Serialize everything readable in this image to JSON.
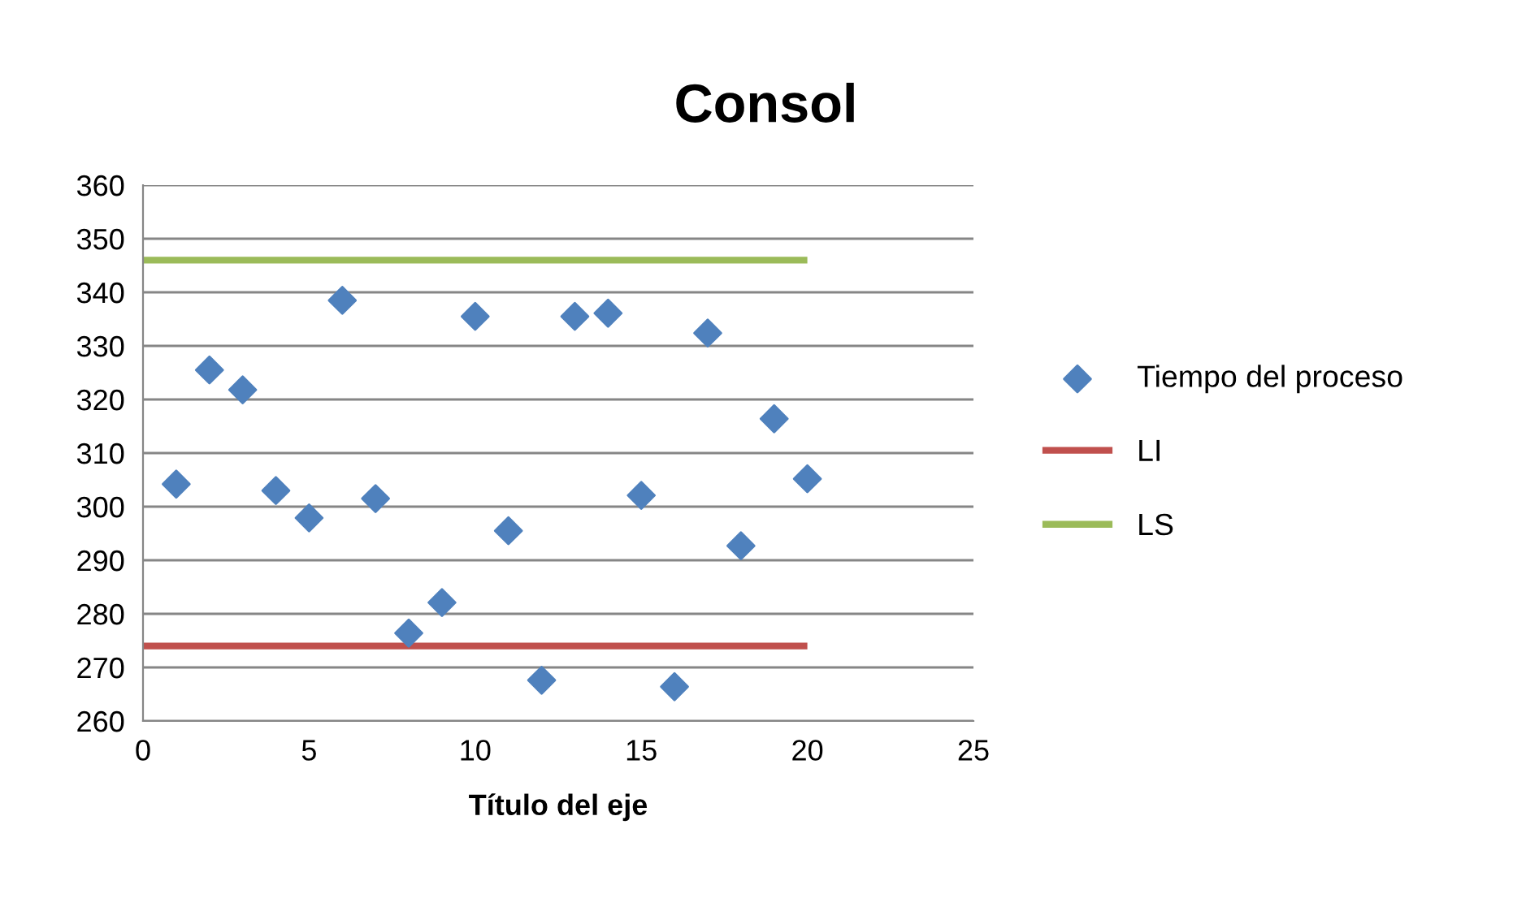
{
  "chart_data": {
    "type": "scatter",
    "title": "Consol",
    "xlabel": "Título del eje",
    "xlim": [
      0,
      25
    ],
    "xticks": [
      0,
      5,
      10,
      15,
      20,
      25
    ],
    "ylim": [
      260,
      360
    ],
    "yticks": [
      260,
      270,
      280,
      290,
      300,
      310,
      320,
      330,
      340,
      350,
      360
    ],
    "grid": "y",
    "legend": "right",
    "series": [
      {
        "name": "Tiempo del proceso",
        "marker": "diamond",
        "color": "#4f81bd",
        "x": [
          1,
          2,
          3,
          4,
          5,
          6,
          7,
          8,
          9,
          10,
          11,
          12,
          13,
          14,
          15,
          16,
          17,
          18,
          19,
          20
        ],
        "values": [
          304.2,
          325.5,
          321.8,
          303,
          297.9,
          338.5,
          301.5,
          276.4,
          282.1,
          335.5,
          295.5,
          267.6,
          335.5,
          336.1,
          302.1,
          266.4,
          332.4,
          292.7,
          316.4,
          305.2
        ]
      },
      {
        "name": "LI",
        "type": "line",
        "marker": "none",
        "color": "#c0504d",
        "x": [
          0,
          20
        ],
        "values": [
          274,
          274
        ]
      },
      {
        "name": "LS",
        "type": "line",
        "marker": "none",
        "color": "#9bbb59",
        "x": [
          0,
          20
        ],
        "values": [
          346,
          346
        ]
      }
    ]
  }
}
